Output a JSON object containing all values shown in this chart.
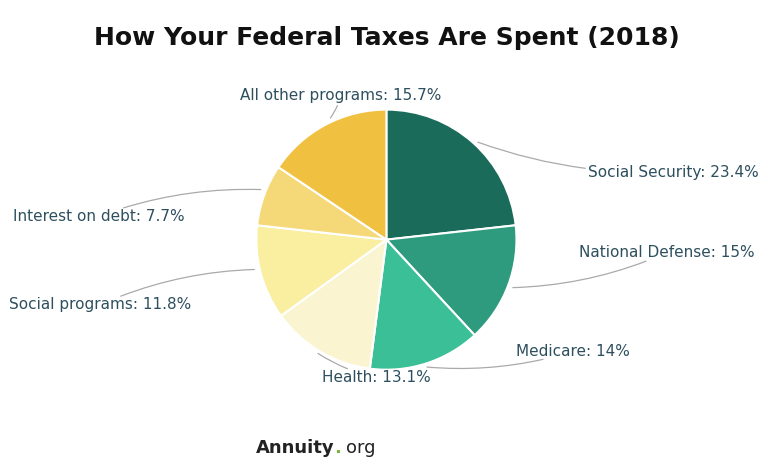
{
  "title": "How Your Federal Taxes Are Spent (2018)",
  "slices": [
    {
      "label": "Social Security: 23.4%",
      "value": 23.4,
      "color": "#1a6b5a"
    },
    {
      "label": "National Defense: 15%",
      "value": 15.0,
      "color": "#2e9b7e"
    },
    {
      "label": "Medicare: 14%",
      "value": 14.0,
      "color": "#3bbf96"
    },
    {
      "label": "Health: 13.1%",
      "value": 13.1,
      "color": "#faf5d0"
    },
    {
      "label": "Social programs: 11.8%",
      "value": 11.8,
      "color": "#faeea0"
    },
    {
      "label": "Interest on debt: 7.7%",
      "value": 7.7,
      "color": "#f5d878"
    },
    {
      "label": "All other programs: 15.7%",
      "value": 15.7,
      "color": "#f0c040"
    }
  ],
  "label_color": "#2d4f5e",
  "watermark_bold": "Annuity",
  "watermark_dot_color": "#7cb342",
  "watermark_normal": ".org",
  "background_color": "#ffffff",
  "title_fontsize": 18,
  "label_fontsize": 11,
  "line_color": "#aaaaaa",
  "label_positions": [
    {
      "ha": "left",
      "va": "center",
      "x_label": 1.55,
      "y_label": 0.52
    },
    {
      "ha": "left",
      "va": "center",
      "x_label": 1.48,
      "y_label": -0.1
    },
    {
      "ha": "left",
      "va": "top",
      "x_label": 1.0,
      "y_label": -0.8
    },
    {
      "ha": "center",
      "va": "top",
      "x_label": -0.08,
      "y_label": -1.0
    },
    {
      "ha": "right",
      "va": "center",
      "x_label": -1.5,
      "y_label": -0.5
    },
    {
      "ha": "right",
      "va": "center",
      "x_label": -1.55,
      "y_label": 0.18
    },
    {
      "ha": "center",
      "va": "bottom",
      "x_label": -0.35,
      "y_label": 1.05
    }
  ]
}
